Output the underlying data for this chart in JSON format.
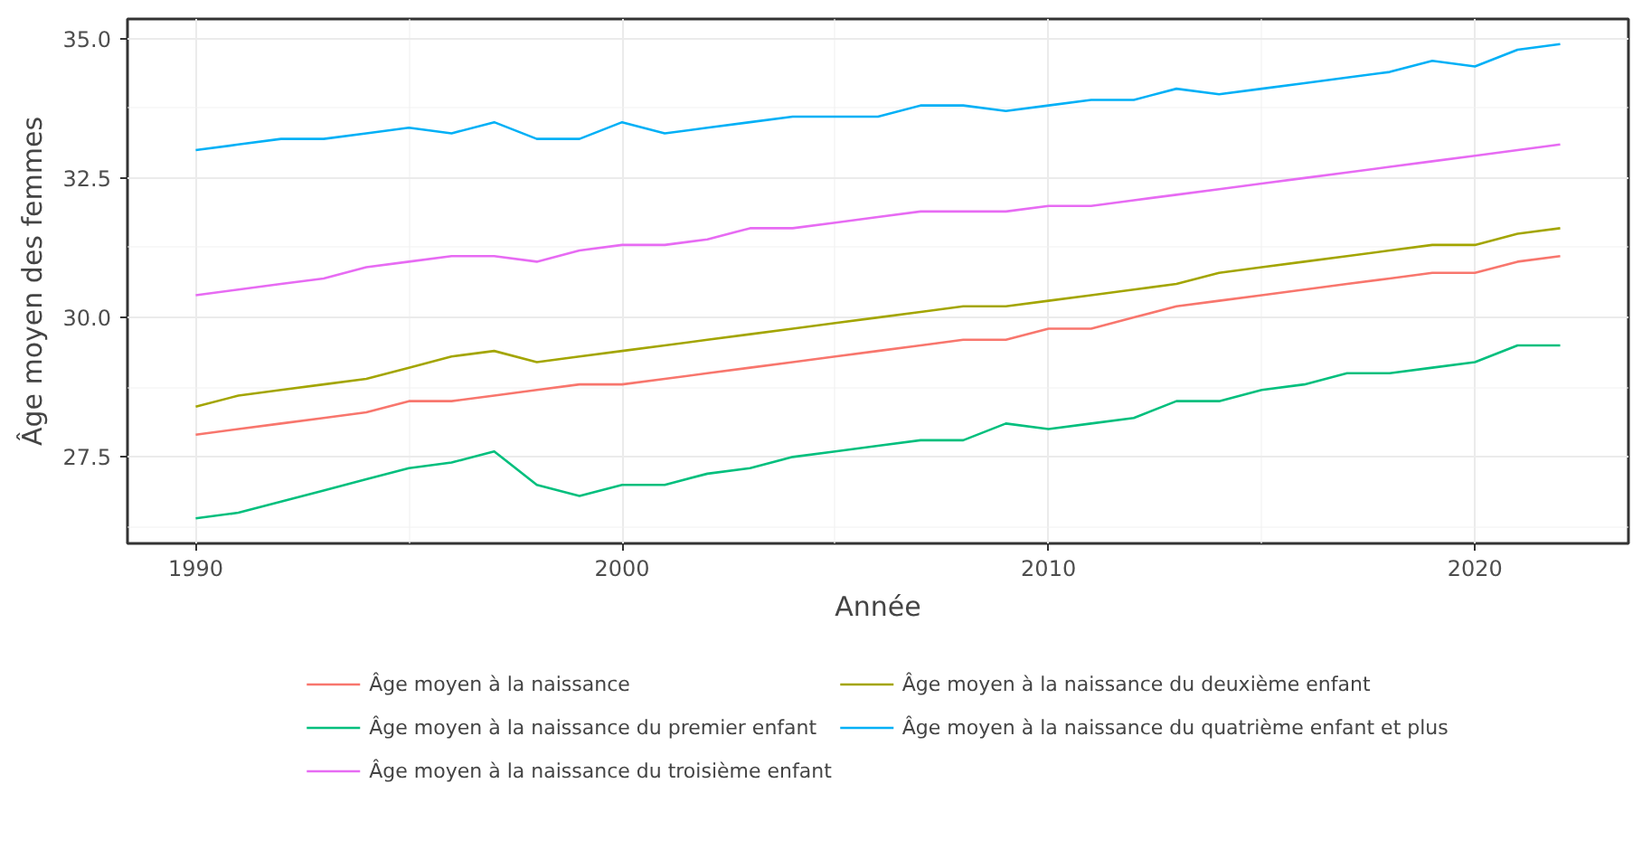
{
  "chart_data": {
    "type": "line",
    "xlabel": "Année",
    "ylabel": "Âge moyen des femmes",
    "x": [
      1990,
      1991,
      1992,
      1993,
      1994,
      1995,
      1996,
      1997,
      1998,
      1999,
      2000,
      2001,
      2002,
      2003,
      2004,
      2005,
      2006,
      2007,
      2008,
      2009,
      2010,
      2011,
      2012,
      2013,
      2014,
      2015,
      2016,
      2017,
      2018,
      2019,
      2020,
      2021,
      2022
    ],
    "xlim": [
      1988.4,
      2023.6
    ],
    "xticks": [
      1990,
      2000,
      2010,
      2020
    ],
    "ylim": [
      25.95,
      35.35
    ],
    "yticks": [
      {
        "value": 27.5,
        "label": "27.5"
      },
      {
        "value": 30,
        "label": "30.0"
      },
      {
        "value": 32.5,
        "label": "32.5"
      },
      {
        "value": 35,
        "label": "35.0"
      }
    ],
    "grid": true,
    "legend": "bottom",
    "series": [
      {
        "name": "Âge moyen à la naissance",
        "color": "#f8766d",
        "values": [
          27.9,
          28.0,
          28.1,
          28.2,
          28.3,
          28.5,
          28.5,
          28.6,
          28.7,
          28.8,
          28.8,
          28.9,
          29.0,
          29.1,
          29.2,
          29.3,
          29.4,
          29.5,
          29.6,
          29.6,
          29.8,
          29.8,
          30.0,
          30.2,
          30.3,
          30.4,
          30.5,
          30.6,
          30.7,
          30.8,
          30.8,
          31.0,
          31.1
        ]
      },
      {
        "name": "Âge moyen à la naissance du deuxième enfant",
        "color": "#a3a500",
        "values": [
          28.4,
          28.6,
          28.7,
          28.8,
          28.9,
          29.1,
          29.3,
          29.4,
          29.2,
          29.3,
          29.4,
          29.5,
          29.6,
          29.7,
          29.8,
          29.9,
          30.0,
          30.1,
          30.2,
          30.2,
          30.3,
          30.4,
          30.5,
          30.6,
          30.8,
          30.9,
          31.0,
          31.1,
          31.2,
          31.3,
          31.3,
          31.5,
          31.6
        ]
      },
      {
        "name": "Âge moyen à la naissance du premier enfant",
        "color": "#00bf7d",
        "values": [
          26.4,
          26.5,
          26.7,
          26.9,
          27.1,
          27.3,
          27.4,
          27.6,
          27.0,
          26.8,
          27.0,
          27.0,
          27.2,
          27.3,
          27.5,
          27.6,
          27.7,
          27.8,
          27.8,
          28.1,
          28.0,
          28.1,
          28.2,
          28.5,
          28.5,
          28.7,
          28.8,
          29.0,
          29.0,
          29.1,
          29.2,
          29.5,
          29.5
        ]
      },
      {
        "name": "Âge moyen à la naissance du quatrième enfant et plus",
        "color": "#00b0f6",
        "values": [
          33.0,
          33.1,
          33.2,
          33.2,
          33.3,
          33.4,
          33.3,
          33.5,
          33.2,
          33.2,
          33.5,
          33.3,
          33.4,
          33.5,
          33.6,
          33.6,
          33.6,
          33.8,
          33.8,
          33.7,
          33.8,
          33.9,
          33.9,
          34.1,
          34.0,
          34.1,
          34.2,
          34.3,
          34.4,
          34.6,
          34.5,
          34.8,
          34.9
        ]
      },
      {
        "name": "Âge moyen à la naissance du troisième enfant",
        "color": "#e76bf3",
        "values": [
          30.4,
          30.5,
          30.6,
          30.7,
          30.9,
          31.0,
          31.1,
          31.1,
          31.0,
          31.2,
          31.3,
          31.3,
          31.4,
          31.6,
          31.6,
          31.7,
          31.8,
          31.9,
          31.9,
          31.9,
          32.0,
          32.0,
          32.1,
          32.2,
          32.3,
          32.4,
          32.5,
          32.6,
          32.7,
          32.8,
          32.9,
          33.0,
          33.1
        ]
      }
    ]
  }
}
